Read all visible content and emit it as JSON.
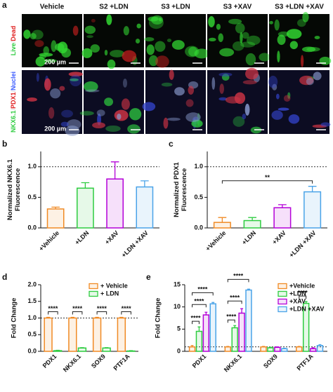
{
  "panel_a": {
    "letter": "a",
    "columns": [
      "Vehicle",
      "S2 +LDN",
      "S3 +LDN",
      "S3 +XAV",
      "S3 +LDN +XAV"
    ],
    "row_labels": [
      [
        {
          "text": "Live",
          "color": "#2ecc40"
        },
        {
          "text": "/",
          "color": "#dddddd"
        },
        {
          "text": "Dead",
          "color": "#e02020"
        }
      ],
      [
        {
          "text": "NKX6.1",
          "color": "#2ecc40"
        },
        {
          "text": "/",
          "color": "#dddddd"
        },
        {
          "text": "PDX1",
          "color": "#e02020"
        },
        {
          "text": "/",
          "color": "#dddddd"
        },
        {
          "text": "Nuclei",
          "color": "#3a5bff"
        }
      ]
    ],
    "scale_bar": "200 µm"
  },
  "chart_data": [
    {
      "type": "bar",
      "letter": "b",
      "ylabel": [
        "Normalized NKX6.1",
        "Fluorescence"
      ],
      "categories": [
        "+Vehicle",
        "+LDN",
        "+XAV",
        "+LDN +XAV"
      ],
      "values": [
        0.31,
        0.65,
        0.8,
        0.67
      ],
      "errors": [
        0.03,
        0.09,
        0.28,
        0.1
      ],
      "colors": [
        "#f08a24",
        "#2ecc40",
        "#b400d8",
        "#4aa3e8"
      ],
      "ylim": [
        0,
        1.25
      ],
      "yticks": [
        {
          "value": 0,
          "label": "0.0"
        },
        {
          "value": 0.5,
          "label": "0.5"
        },
        {
          "value": 1,
          "label": "1.0"
        }
      ],
      "reference_line": 1
    },
    {
      "type": "bar",
      "letter": "c",
      "ylabel": [
        "Normalized PDX1",
        "Fluorescence"
      ],
      "categories": [
        "+Vehicle",
        "+LDN",
        "+XAV",
        "+LDN +XAV"
      ],
      "values": [
        0.09,
        0.12,
        0.33,
        0.59
      ],
      "errors": [
        0.08,
        0.05,
        0.05,
        0.09
      ],
      "colors": [
        "#f08a24",
        "#2ecc40",
        "#b400d8",
        "#4aa3e8"
      ],
      "ylim": [
        0,
        1.25
      ],
      "yticks": [
        {
          "value": 0,
          "label": "0.0"
        },
        {
          "value": 0.5,
          "label": "0.5"
        },
        {
          "value": 1,
          "label": "1.0"
        }
      ],
      "reference_line": 1,
      "significance": [
        {
          "text": "**",
          "from": 0,
          "to": 3
        }
      ]
    },
    {
      "type": "grouped_bar",
      "letter": "d",
      "ylabel": [
        "Fold  Change"
      ],
      "categories": [
        "PDX1",
        "NKX6.1",
        "SOX9",
        "PTF1A"
      ],
      "series": [
        {
          "name": "+ Vehicle",
          "color": "#f08a24",
          "values": [
            1,
            1,
            1,
            1
          ],
          "errors": [
            0.02,
            0.02,
            0.02,
            0.02
          ]
        },
        {
          "name": "+ LDN",
          "color": "#2ecc40",
          "values": [
            0.02,
            0.1,
            0.1,
            0.01
          ],
          "errors": [
            0.01,
            0.01,
            0.01,
            0.01
          ]
        }
      ],
      "ylim": [
        0,
        2
      ],
      "yticks": [
        {
          "value": 0,
          "label": "0.0"
        },
        {
          "value": 0.5,
          "label": "0.5"
        },
        {
          "value": 1,
          "label": "1.0"
        },
        {
          "value": 1.5,
          "label": "1.5"
        },
        {
          "value": 2,
          "label": "2.0"
        }
      ],
      "reference_line": 1,
      "legend": "upper right",
      "significance": [
        {
          "text": "****",
          "group": 0,
          "from": 0,
          "to": 1
        },
        {
          "text": "****",
          "group": 1,
          "from": 0,
          "to": 1
        },
        {
          "text": "****",
          "group": 2,
          "from": 0,
          "to": 1
        },
        {
          "text": "****",
          "group": 3,
          "from": 0,
          "to": 1
        }
      ]
    },
    {
      "type": "grouped_bar",
      "letter": "e",
      "ylabel": [
        "Fold  Change"
      ],
      "categories": [
        "PDX1",
        "NKX6.1",
        "SOX9",
        "PTF1A"
      ],
      "series": [
        {
          "name": "+Vehicle",
          "color": "#f08a24",
          "values": [
            1,
            1,
            1,
            1
          ],
          "errors": [
            0.3,
            0.1,
            0.1,
            0.1
          ]
        },
        {
          "name": "+LDN",
          "color": "#2ecc40",
          "values": [
            4.5,
            5.3,
            0.8,
            10.8
          ],
          "errors": [
            1,
            0.5,
            0.1,
            0.4
          ]
        },
        {
          "name": "+XAV",
          "color": "#b400d8",
          "values": [
            8.2,
            8.6,
            0.9,
            0.6
          ],
          "errors": [
            0.6,
            1,
            0.1,
            0.2
          ]
        },
        {
          "name": "+LDN +XAV",
          "color": "#4aa3e8",
          "values": [
            10.7,
            13.8,
            0.6,
            1.3
          ],
          "errors": [
            0.3,
            0.2,
            0.1,
            0.2
          ]
        }
      ],
      "ylim": [
        0,
        15
      ],
      "yticks": [
        0,
        5,
        10,
        15
      ],
      "reference_line": 1,
      "legend": "upper right",
      "significance": [
        {
          "text": "****",
          "group": 0,
          "from": 0,
          "to": 1
        },
        {
          "text": "****",
          "group": 0,
          "from": 0,
          "to": 2
        },
        {
          "text": "****",
          "group": 0,
          "from": 0,
          "to": 3
        },
        {
          "text": "****",
          "group": 1,
          "from": 0,
          "to": 1
        },
        {
          "text": "****",
          "group": 1,
          "from": 0,
          "to": 2
        },
        {
          "text": "****",
          "group": 1,
          "from": 0,
          "to": 3
        },
        {
          "text": "****",
          "group": 3,
          "from": 0,
          "to": 1
        }
      ]
    }
  ]
}
